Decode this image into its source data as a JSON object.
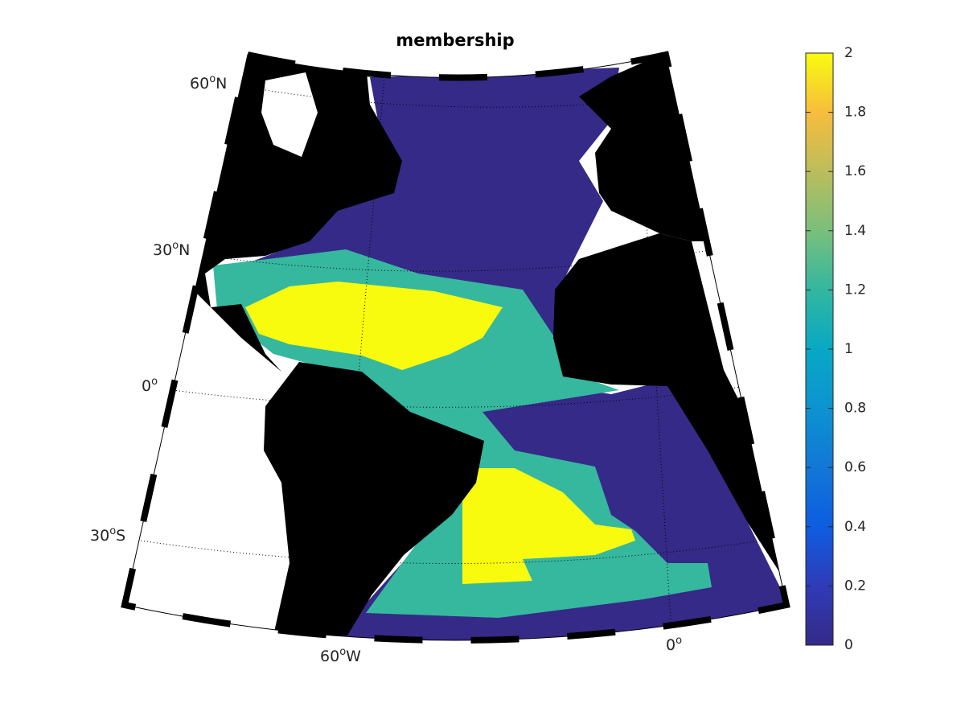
{
  "title": "membership",
  "colorbar": {
    "range": [
      0,
      2
    ],
    "ticks": [
      0,
      0.2,
      0.4,
      0.6,
      0.8,
      1,
      1.2,
      1.4,
      1.6,
      1.8,
      2
    ]
  },
  "lat_labels": [
    {
      "value": "60",
      "unit": "o",
      "hemisphere": "N"
    },
    {
      "value": "30",
      "unit": "o",
      "hemisphere": "N"
    },
    {
      "value": "0",
      "unit": "o"
    },
    {
      "value": "30",
      "unit": "o",
      "hemisphere": "S"
    }
  ],
  "lon_labels": [
    {
      "value": "60",
      "unit": "o",
      "hemisphere": "W"
    },
    {
      "value": "0",
      "unit": "o"
    }
  ]
}
